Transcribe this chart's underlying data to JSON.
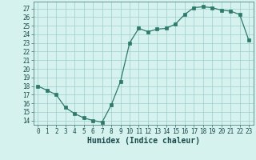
{
  "x": [
    0,
    1,
    2,
    3,
    4,
    5,
    6,
    7,
    8,
    9,
    10,
    11,
    12,
    13,
    14,
    15,
    16,
    17,
    18,
    19,
    20,
    21,
    22,
    23
  ],
  "y": [
    18.0,
    17.5,
    17.0,
    15.5,
    14.8,
    14.3,
    14.0,
    13.8,
    15.8,
    18.5,
    23.0,
    24.7,
    24.3,
    24.6,
    24.7,
    25.2,
    26.3,
    27.1,
    27.2,
    27.1,
    26.8,
    26.7,
    26.3,
    23.3
  ],
  "xlabel": "Humidex (Indice chaleur)",
  "ylim": [
    13.5,
    27.8
  ],
  "xlim": [
    -0.5,
    23.5
  ],
  "yticks": [
    14,
    15,
    16,
    17,
    18,
    19,
    20,
    21,
    22,
    23,
    24,
    25,
    26,
    27
  ],
  "xticks": [
    0,
    1,
    2,
    3,
    4,
    5,
    6,
    7,
    8,
    9,
    10,
    11,
    12,
    13,
    14,
    15,
    16,
    17,
    18,
    19,
    20,
    21,
    22,
    23
  ],
  "line_color": "#2d7a6a",
  "marker": "s",
  "marker_size": 2.2,
  "bg_color": "#d5f2ee",
  "grid_color": "#9ecece",
  "xlabel_fontsize": 7,
  "tick_fontsize": 5.5
}
